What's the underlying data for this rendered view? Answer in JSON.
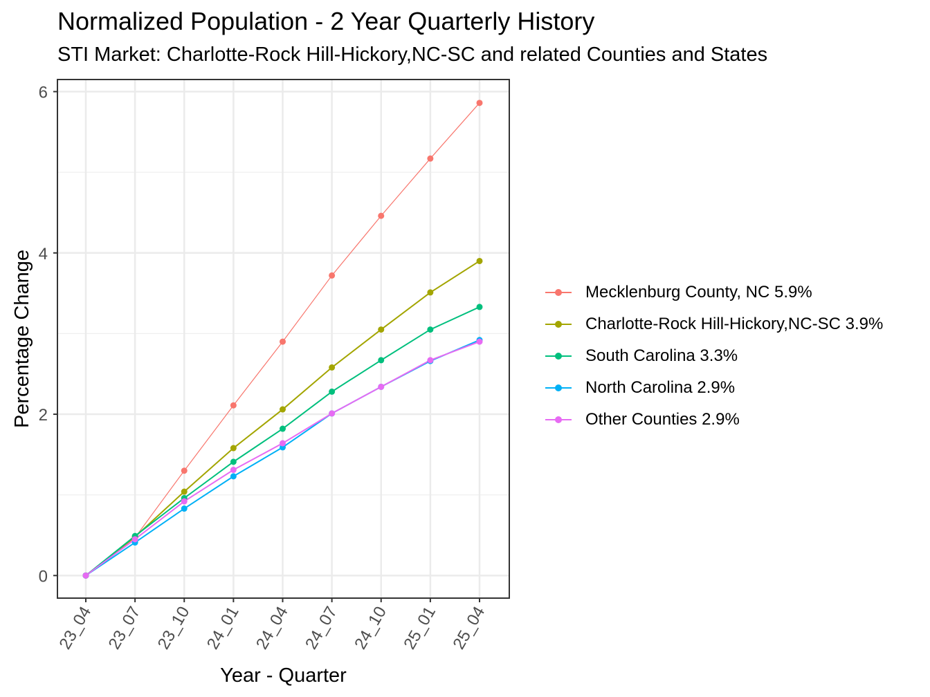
{
  "chart_data": {
    "type": "line",
    "title": "Normalized Population - 2 Year Quarterly History",
    "subtitle": "STI Market: Charlotte-Rock Hill-Hickory,NC-SC and related Counties and States",
    "xlabel": "Year - Quarter",
    "ylabel": "Percentage Change",
    "categories": [
      "23_04",
      "23_07",
      "23_10",
      "24_01",
      "24_04",
      "24_07",
      "24_10",
      "25_01",
      "25_04"
    ],
    "yticks": [
      0,
      2,
      4,
      6
    ],
    "ylim": [
      -0.28,
      6.15
    ],
    "grid": true,
    "legend_position": "right",
    "series": [
      {
        "name": "Mecklenburg County, NC 5.9%",
        "color": "#F8766D",
        "values": [
          0,
          0.47,
          1.3,
          2.11,
          2.9,
          3.72,
          4.46,
          5.17,
          5.86
        ]
      },
      {
        "name": "Charlotte-Rock Hill-Hickory,NC-SC 3.9%",
        "color": "#A3A500",
        "values": [
          0,
          0.48,
          1.04,
          1.58,
          2.06,
          2.58,
          3.05,
          3.51,
          3.9
        ]
      },
      {
        "name": "South Carolina 3.3%",
        "color": "#00BF7D",
        "values": [
          0,
          0.49,
          0.96,
          1.41,
          1.82,
          2.28,
          2.67,
          3.05,
          3.33
        ]
      },
      {
        "name": "North Carolina 2.9%",
        "color": "#00B0F6",
        "values": [
          0,
          0.41,
          0.83,
          1.23,
          1.59,
          2.01,
          2.34,
          2.66,
          2.92
        ]
      },
      {
        "name": "Other Counties 2.9%",
        "color": "#E76BF3",
        "values": [
          0,
          0.45,
          0.92,
          1.31,
          1.64,
          2.01,
          2.34,
          2.67,
          2.9
        ]
      }
    ]
  }
}
